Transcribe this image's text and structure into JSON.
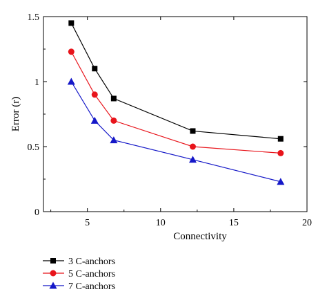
{
  "chart_data": {
    "type": "line",
    "title": "",
    "xlabel": "Connectivity",
    "ylabel": "Error (r)",
    "xlim": [
      2,
      20
    ],
    "ylim": [
      0,
      1.5
    ],
    "xticks": [
      5,
      10,
      15,
      20
    ],
    "yticks": [
      0,
      0.5,
      1,
      1.5
    ],
    "xtick_labels": [
      "5",
      "10",
      "15",
      "20"
    ],
    "ytick_labels": [
      "0",
      "0.5",
      "1",
      "1.5"
    ],
    "grid": false,
    "legend_position": "bottom-left, below plot",
    "series": [
      {
        "name": "3 C-anchors",
        "color": "#000000",
        "marker": "square",
        "x": [
          3.9,
          5.5,
          6.8,
          12.2,
          18.2
        ],
        "y": [
          1.45,
          1.1,
          0.87,
          0.62,
          0.56
        ]
      },
      {
        "name": "5 C-anchors",
        "color": "#e8141b",
        "marker": "circle",
        "x": [
          3.9,
          5.5,
          6.8,
          12.2,
          18.2
        ],
        "y": [
          1.23,
          0.9,
          0.7,
          0.5,
          0.45
        ]
      },
      {
        "name": "7 C-anchors",
        "color": "#1518c8",
        "marker": "triangle",
        "x": [
          3.9,
          5.5,
          6.8,
          12.2,
          18.2
        ],
        "y": [
          1.0,
          0.7,
          0.55,
          0.4,
          0.23
        ]
      }
    ]
  }
}
